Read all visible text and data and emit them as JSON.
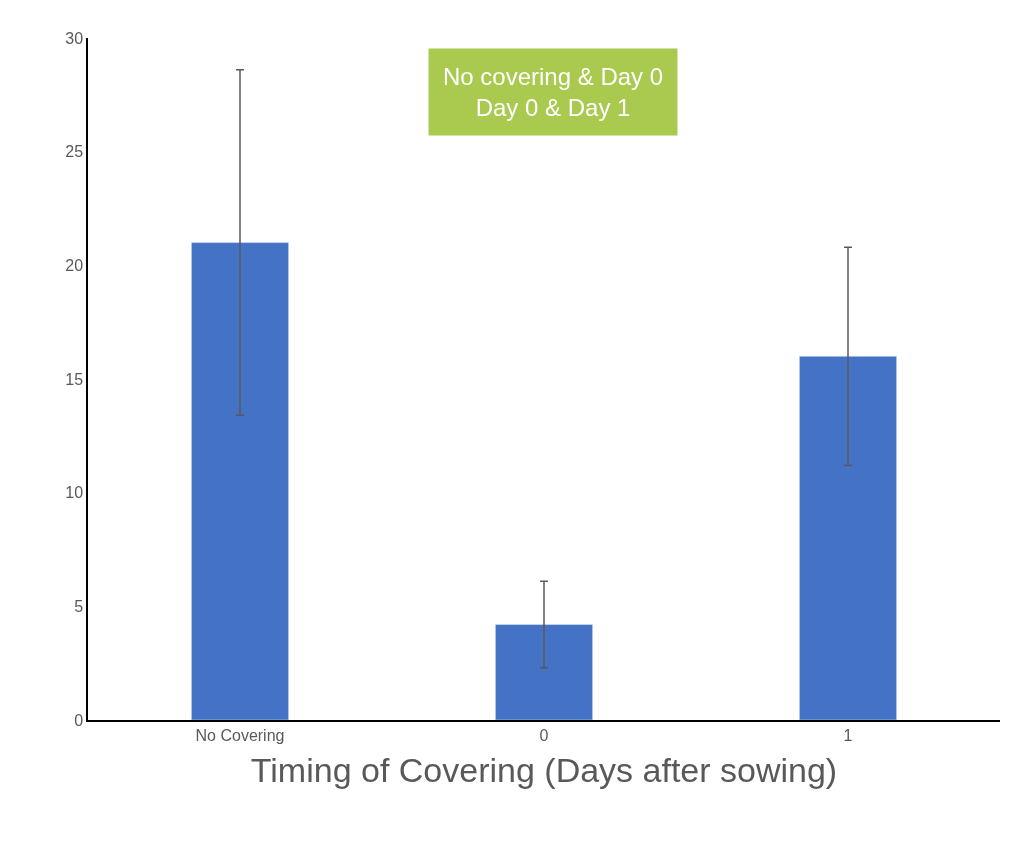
{
  "chart_data": {
    "type": "bar",
    "xlabel": "Timing of Covering (Days after sowing)",
    "categories": [
      "No Covering",
      "0",
      "1"
    ],
    "values": [
      21,
      4.2,
      16
    ],
    "errors": [
      7.6,
      1.9,
      4.8
    ],
    "color": "#4472c4",
    "ylim": [
      0,
      30
    ],
    "yticks": [
      0,
      5,
      10,
      15,
      20,
      25,
      30
    ],
    "annotations": [
      "No covering & Day 0\nDay 0 & Day 1"
    ]
  }
}
